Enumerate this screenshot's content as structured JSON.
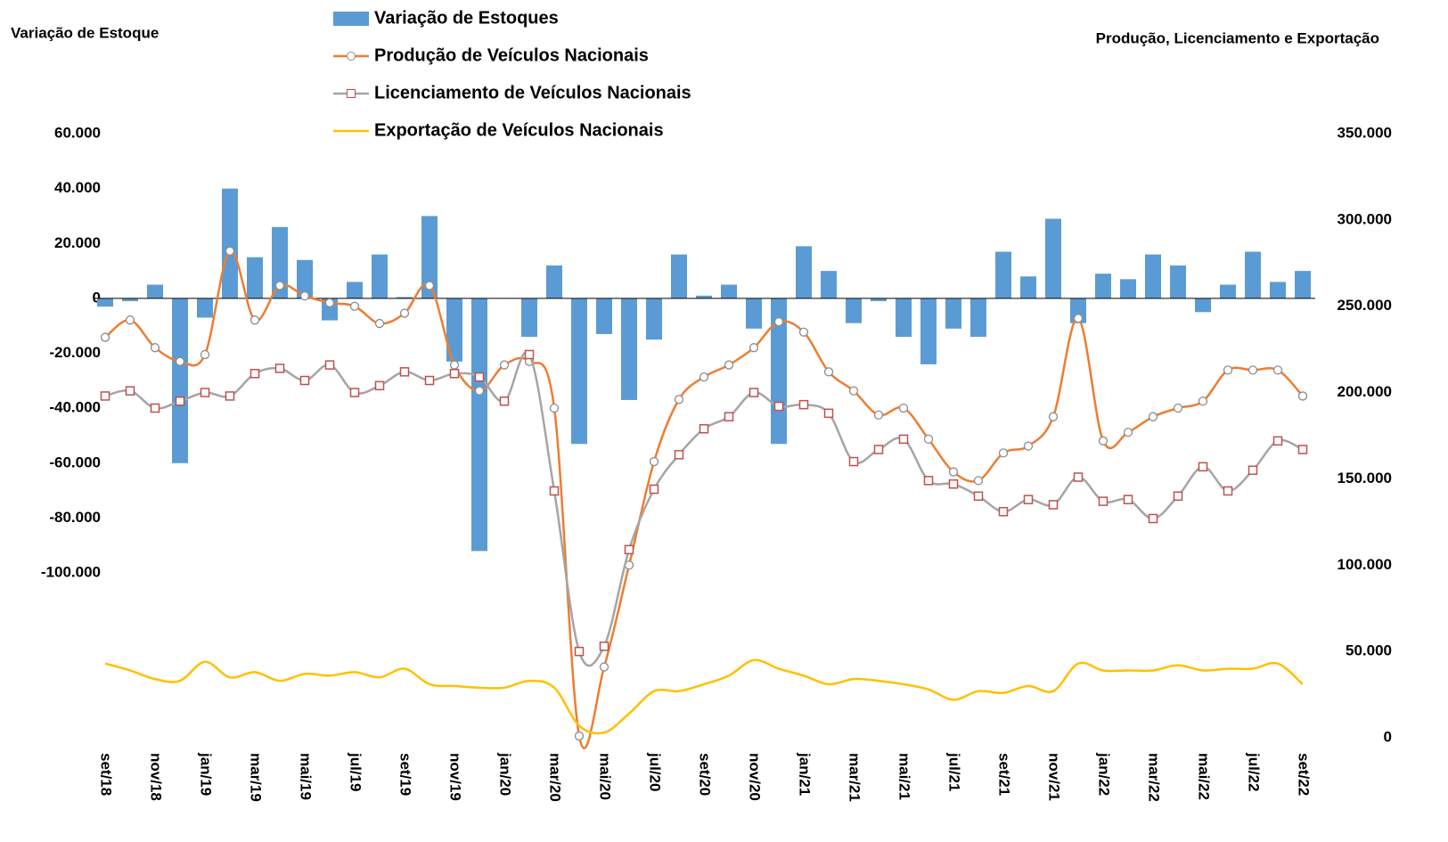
{
  "chart_data": {
    "type": "combo",
    "y_title": "Variação de Estoque",
    "y2_title": "Produção, Licenciamento e Exportação",
    "categories": [
      "set/18",
      null,
      "nov/18",
      null,
      "jan/19",
      null,
      "mar/19",
      null,
      "mai/19",
      null,
      "jul/19",
      null,
      "set/19",
      null,
      "nov/19",
      null,
      "jan/20",
      null,
      "mar/20",
      null,
      "mai/20",
      null,
      "jul/20",
      null,
      "set/20",
      null,
      "nov/20",
      null,
      "jan/21",
      null,
      "mar/21",
      null,
      "mai/21",
      null,
      "jul/21",
      null,
      "set/21",
      null,
      "nov/21",
      null,
      "jan/22",
      null,
      "mar/22",
      null,
      "mai/22",
      null,
      "jul/22",
      null,
      "set/22"
    ],
    "ylim": [
      -160000,
      60000
    ],
    "yticks": [
      {
        "value": 60000,
        "label": "60.000"
      },
      {
        "value": 40000,
        "label": "40.000"
      },
      {
        "value": 20000,
        "label": "20.000"
      },
      0,
      {
        "value": -20000,
        "label": "-20.000"
      },
      {
        "value": -40000,
        "label": "-40.000"
      },
      {
        "value": -60000,
        "label": "-60.000"
      },
      {
        "value": -80000,
        "label": "-80.000"
      },
      {
        "value": -100000,
        "label": "-100.000"
      }
    ],
    "y2lim": [
      0,
      350000
    ],
    "y2ticks": [
      {
        "value": 350000,
        "label": "350.000"
      },
      {
        "value": 300000,
        "label": "300.000"
      },
      {
        "value": 250000,
        "label": "250.000"
      },
      {
        "value": 200000,
        "label": "200.000"
      },
      {
        "value": 150000,
        "label": "150.000"
      },
      {
        "value": 100000,
        "label": "100.000"
      },
      {
        "value": 50000,
        "label": "50.000"
      },
      0
    ],
    "series": [
      {
        "name": "Variação de Estoques",
        "type": "bar",
        "color": "#5b9bd5",
        "values": [
          -3000,
          -1000,
          5000,
          -60000,
          -7000,
          40000,
          15000,
          26000,
          14000,
          -8000,
          6000,
          16000,
          500,
          30000,
          -23000,
          -92000,
          0,
          -14000,
          12000,
          -53000,
          -13000,
          -37000,
          -15000,
          16000,
          1000,
          5000,
          -11000,
          -53000,
          19000,
          10000,
          -9000,
          -1000,
          -14000,
          -24000,
          -11000,
          -14000,
          17000,
          8000,
          29000,
          -9000,
          9000,
          7000,
          16000,
          12000,
          -5000,
          5000,
          17000,
          6000,
          10000
        ]
      },
      {
        "name": "Produção de Veículos Nacionais",
        "type": "line",
        "axis": "y2",
        "color": "#ed7d31",
        "marker": "circle",
        "marker_color": "#8c8c8c",
        "values": [
          232000,
          242000,
          226000,
          218000,
          222000,
          282000,
          242000,
          262000,
          256000,
          252000,
          250000,
          240000,
          246000,
          262000,
          216000,
          201000,
          216000,
          218000,
          191000,
          1000,
          41000,
          100000,
          160000,
          196000,
          209000,
          216000,
          226000,
          241000,
          235000,
          212000,
          201000,
          187000,
          191000,
          173000,
          154000,
          149000,
          165000,
          169000,
          186000,
          243000,
          172000,
          177000,
          186000,
          191000,
          195000,
          213000,
          213000,
          213000,
          198000
        ]
      },
      {
        "name": "Licenciamento de Veículos Nacionais",
        "type": "line",
        "axis": "y2",
        "color": "#a5a5a5",
        "marker": "square",
        "marker_color": "#c0504d",
        "values": [
          198000,
          201000,
          191000,
          195000,
          200000,
          198000,
          211000,
          214000,
          207000,
          216000,
          200000,
          204000,
          212000,
          207000,
          211000,
          209000,
          195000,
          222000,
          143000,
          50000,
          53000,
          109000,
          144000,
          164000,
          179000,
          186000,
          200000,
          192000,
          193000,
          188000,
          160000,
          167000,
          173000,
          149000,
          147000,
          140000,
          131000,
          138000,
          135000,
          151000,
          137000,
          138000,
          127000,
          140000,
          157000,
          143000,
          155000,
          172000,
          167000
        ]
      },
      {
        "name": "Exportação de Veículos Nacionais",
        "type": "line",
        "axis": "y2",
        "color": "#ffc000",
        "values": [
          43000,
          39000,
          34000,
          33000,
          44000,
          35000,
          38000,
          33000,
          37000,
          36000,
          38000,
          35000,
          40000,
          31000,
          30000,
          29000,
          29000,
          33000,
          29000,
          7000,
          3000,
          14000,
          27000,
          27000,
          31000,
          36000,
          45000,
          40000,
          36000,
          31000,
          34000,
          33000,
          31000,
          28000,
          22000,
          27000,
          26000,
          30000,
          27000,
          43000,
          39000,
          39000,
          39000,
          42000,
          39000,
          40000,
          40000,
          43000,
          31000
        ]
      }
    ]
  }
}
